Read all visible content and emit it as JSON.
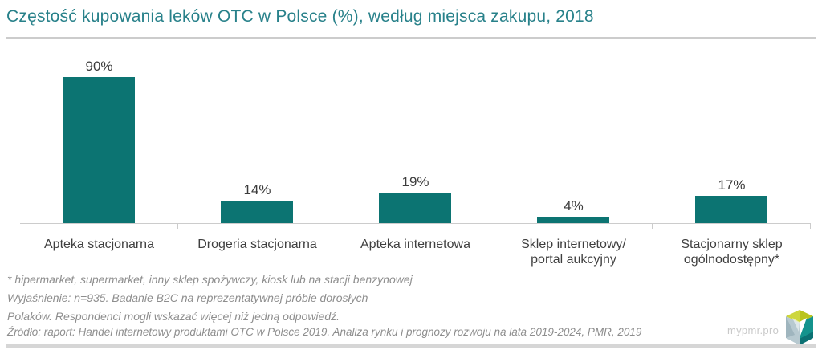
{
  "title": "Częstość kupowania leków OTC w Polsce (%), według miejsca zakupu, 2018",
  "chart_data": {
    "type": "bar",
    "categories": [
      "Apteka stacjonarna",
      "Drogeria stacjonarna",
      "Apteka internetowa",
      "Sklep internetowy/ portal aukcyjny",
      "Stacjonarny sklep ogólnodostępny*"
    ],
    "category_lines": [
      [
        "Apteka stacjonarna"
      ],
      [
        "Drogeria stacjonarna"
      ],
      [
        "Apteka internetowa"
      ],
      [
        "Sklep internetowy/",
        "portal aukcyjny"
      ],
      [
        "Stacjonarny sklep",
        "ogólnodostępny*"
      ]
    ],
    "values": [
      90,
      14,
      19,
      4,
      17
    ],
    "value_labels": [
      "90%",
      "14%",
      "19%",
      "4%",
      "17%"
    ],
    "title": "Częstość kupowania leków OTC w Polsce (%), według miejsca zakupu, 2018",
    "xlabel": "",
    "ylabel": "",
    "ylim": [
      0,
      100
    ],
    "grid": false,
    "legend": "none",
    "bar_color": "#0C7472"
  },
  "footnotes": [
    "* hipermarket, supermarket, inny sklep spożywczy, kiosk lub na stacji benzynowej",
    "Wyjaśnienie: n=935. Badanie B2C na reprezentatywnej próbie dorosłych",
    "Polaków. Respondenci mogli wskazać więcej niż jedną odpowiedź."
  ],
  "source": "Źródło: raport: Handel internetowy produktami OTC w Polsce 2019. Analiza rynku i prognozy rozwoju na lata 2019-2024, PMR, 2019",
  "branding": {
    "watermark": "mypmr.pro",
    "logo_icon": "pmr-cube-logo"
  },
  "colors": {
    "accent": "#0C7472",
    "title_text": "#28818A",
    "label_text": "#3F3F3F",
    "muted_text": "#8E8E8E",
    "axis": "#CCCCCC",
    "watermark_text": "#C9C9C9",
    "bottom_bar": "#D6D6D6"
  }
}
